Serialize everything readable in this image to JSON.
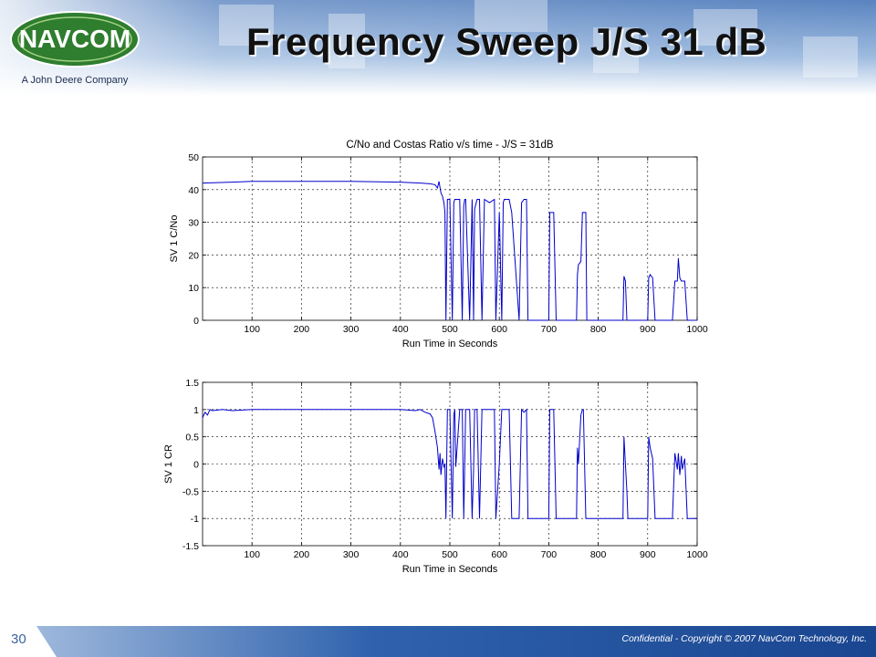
{
  "slide": {
    "title": "Frequency Sweep J/S 31 dB",
    "page_number": "30",
    "footer": "Confidential - Copyright © 2007 NavCom Technology, Inc.",
    "logo_text": "NAVCOM",
    "logo_tagline": "A John Deere Company"
  },
  "colors": {
    "trace": "#0000cc",
    "header_blue": "#3f6fb0",
    "footer_blue": "#1e4f9a"
  },
  "chart_data": [
    {
      "type": "line",
      "title": "C/No and Costas Ratio v/s time - J/S = 31dB",
      "xlabel": "Run Time in Seconds",
      "ylabel": "SV 1 C/No",
      "xlim": [
        0,
        1000
      ],
      "ylim": [
        0,
        50
      ],
      "xticks": [
        100,
        200,
        300,
        400,
        500,
        600,
        700,
        800,
        900,
        1000
      ],
      "yticks": [
        0,
        10,
        20,
        30,
        40,
        50
      ],
      "grid": true,
      "series": [
        {
          "x": [
            0,
            60,
            100,
            200,
            300,
            400,
            440,
            460,
            470,
            475,
            478,
            482,
            485,
            488,
            490,
            492,
            495,
            500,
            505,
            508,
            510,
            520,
            525,
            528,
            530,
            532,
            540,
            545,
            548,
            550,
            555,
            560,
            565,
            570,
            580,
            590,
            593,
            600,
            605,
            608,
            610,
            620,
            625,
            640,
            645,
            650,
            655,
            658,
            660,
            700,
            702,
            703,
            705,
            710,
            715,
            717,
            720,
            756,
            758,
            760,
            765,
            768,
            770,
            775,
            777,
            778,
            780,
            850,
            852,
            855,
            858,
            860,
            900,
            902,
            905,
            910,
            915,
            918,
            920,
            950,
            955,
            960,
            962,
            965,
            968,
            970,
            975,
            980,
            985,
            1000
          ],
          "y": [
            42,
            42.3,
            42.5,
            42.5,
            42.5,
            42.3,
            42,
            41.8,
            41.5,
            40.5,
            42.5,
            39,
            38,
            36,
            33,
            0,
            37,
            37,
            0,
            36,
            37,
            37,
            0,
            35,
            37,
            37,
            0,
            37,
            0,
            34,
            37,
            37,
            0,
            37,
            36,
            37,
            0,
            33,
            0,
            36,
            37,
            37,
            33,
            0,
            36,
            37,
            37,
            0,
            0,
            0,
            33,
            33,
            33,
            33,
            0,
            0,
            0,
            0,
            14,
            17,
            18,
            33,
            33,
            33,
            0,
            0,
            0,
            0,
            13.5,
            12,
            0,
            0,
            0,
            13,
            14,
            13,
            0,
            0,
            0,
            0,
            12,
            12,
            19,
            13,
            12,
            12,
            12,
            0,
            0,
            0
          ]
        }
      ]
    },
    {
      "type": "line",
      "xlabel": "Run Time in Seconds",
      "ylabel": "SV 1 CR",
      "xlim": [
        0,
        1000
      ],
      "ylim": [
        -1.5,
        1.5
      ],
      "xticks": [
        100,
        200,
        300,
        400,
        500,
        600,
        700,
        800,
        900,
        1000
      ],
      "yticks": [
        -1.5,
        -1,
        -0.5,
        0,
        0.5,
        1,
        1.5
      ],
      "grid": true,
      "series": [
        {
          "x": [
            0,
            5,
            10,
            15,
            20,
            40,
            60,
            100,
            200,
            300,
            400,
            430,
            440,
            450,
            460,
            465,
            470,
            475,
            478,
            480,
            482,
            485,
            488,
            490,
            492,
            495,
            500,
            505,
            508,
            510,
            512,
            520,
            525,
            528,
            530,
            532,
            540,
            545,
            548,
            550,
            555,
            560,
            565,
            570,
            580,
            590,
            593,
            600,
            605,
            608,
            610,
            620,
            625,
            640,
            645,
            650,
            655,
            658,
            660,
            700,
            702,
            703,
            705,
            710,
            715,
            717,
            720,
            756,
            758,
            760,
            765,
            768,
            770,
            775,
            777,
            778,
            780,
            850,
            852,
            855,
            858,
            860,
            900,
            902,
            905,
            910,
            915,
            918,
            920,
            950,
            955,
            960,
            962,
            965,
            968,
            970,
            975,
            980,
            985,
            1000
          ],
          "y": [
            0.85,
            0.95,
            0.9,
            1,
            0.98,
            1,
            0.98,
            1,
            1,
            1,
            1,
            0.98,
            1,
            0.95,
            0.92,
            0.85,
            0.6,
            0.3,
            -0.1,
            0.2,
            -0.2,
            0.1,
            -0.05,
            0,
            -1,
            1,
            1,
            -1,
            0.9,
            1,
            -0.05,
            1,
            1,
            -1,
            0,
            1,
            1,
            -1,
            -0.1,
            1,
            1,
            -1,
            1,
            1,
            1,
            1,
            -1,
            0,
            1,
            1,
            1,
            1,
            -1,
            -1,
            1,
            0.95,
            1,
            -1,
            -1,
            -1,
            1,
            1,
            1,
            1,
            -1,
            -1,
            -1,
            -1,
            0.3,
            0,
            0.9,
            1,
            1,
            -1,
            -1,
            -1,
            -1,
            -1,
            0.5,
            0,
            -0.5,
            -1,
            -1,
            0.5,
            0.3,
            0.1,
            -1,
            -1,
            -1,
            -1,
            0.2,
            -0.1,
            0.2,
            -0.2,
            0.15,
            -0.1,
            0.1,
            -1,
            -1,
            -1
          ]
        }
      ]
    }
  ]
}
